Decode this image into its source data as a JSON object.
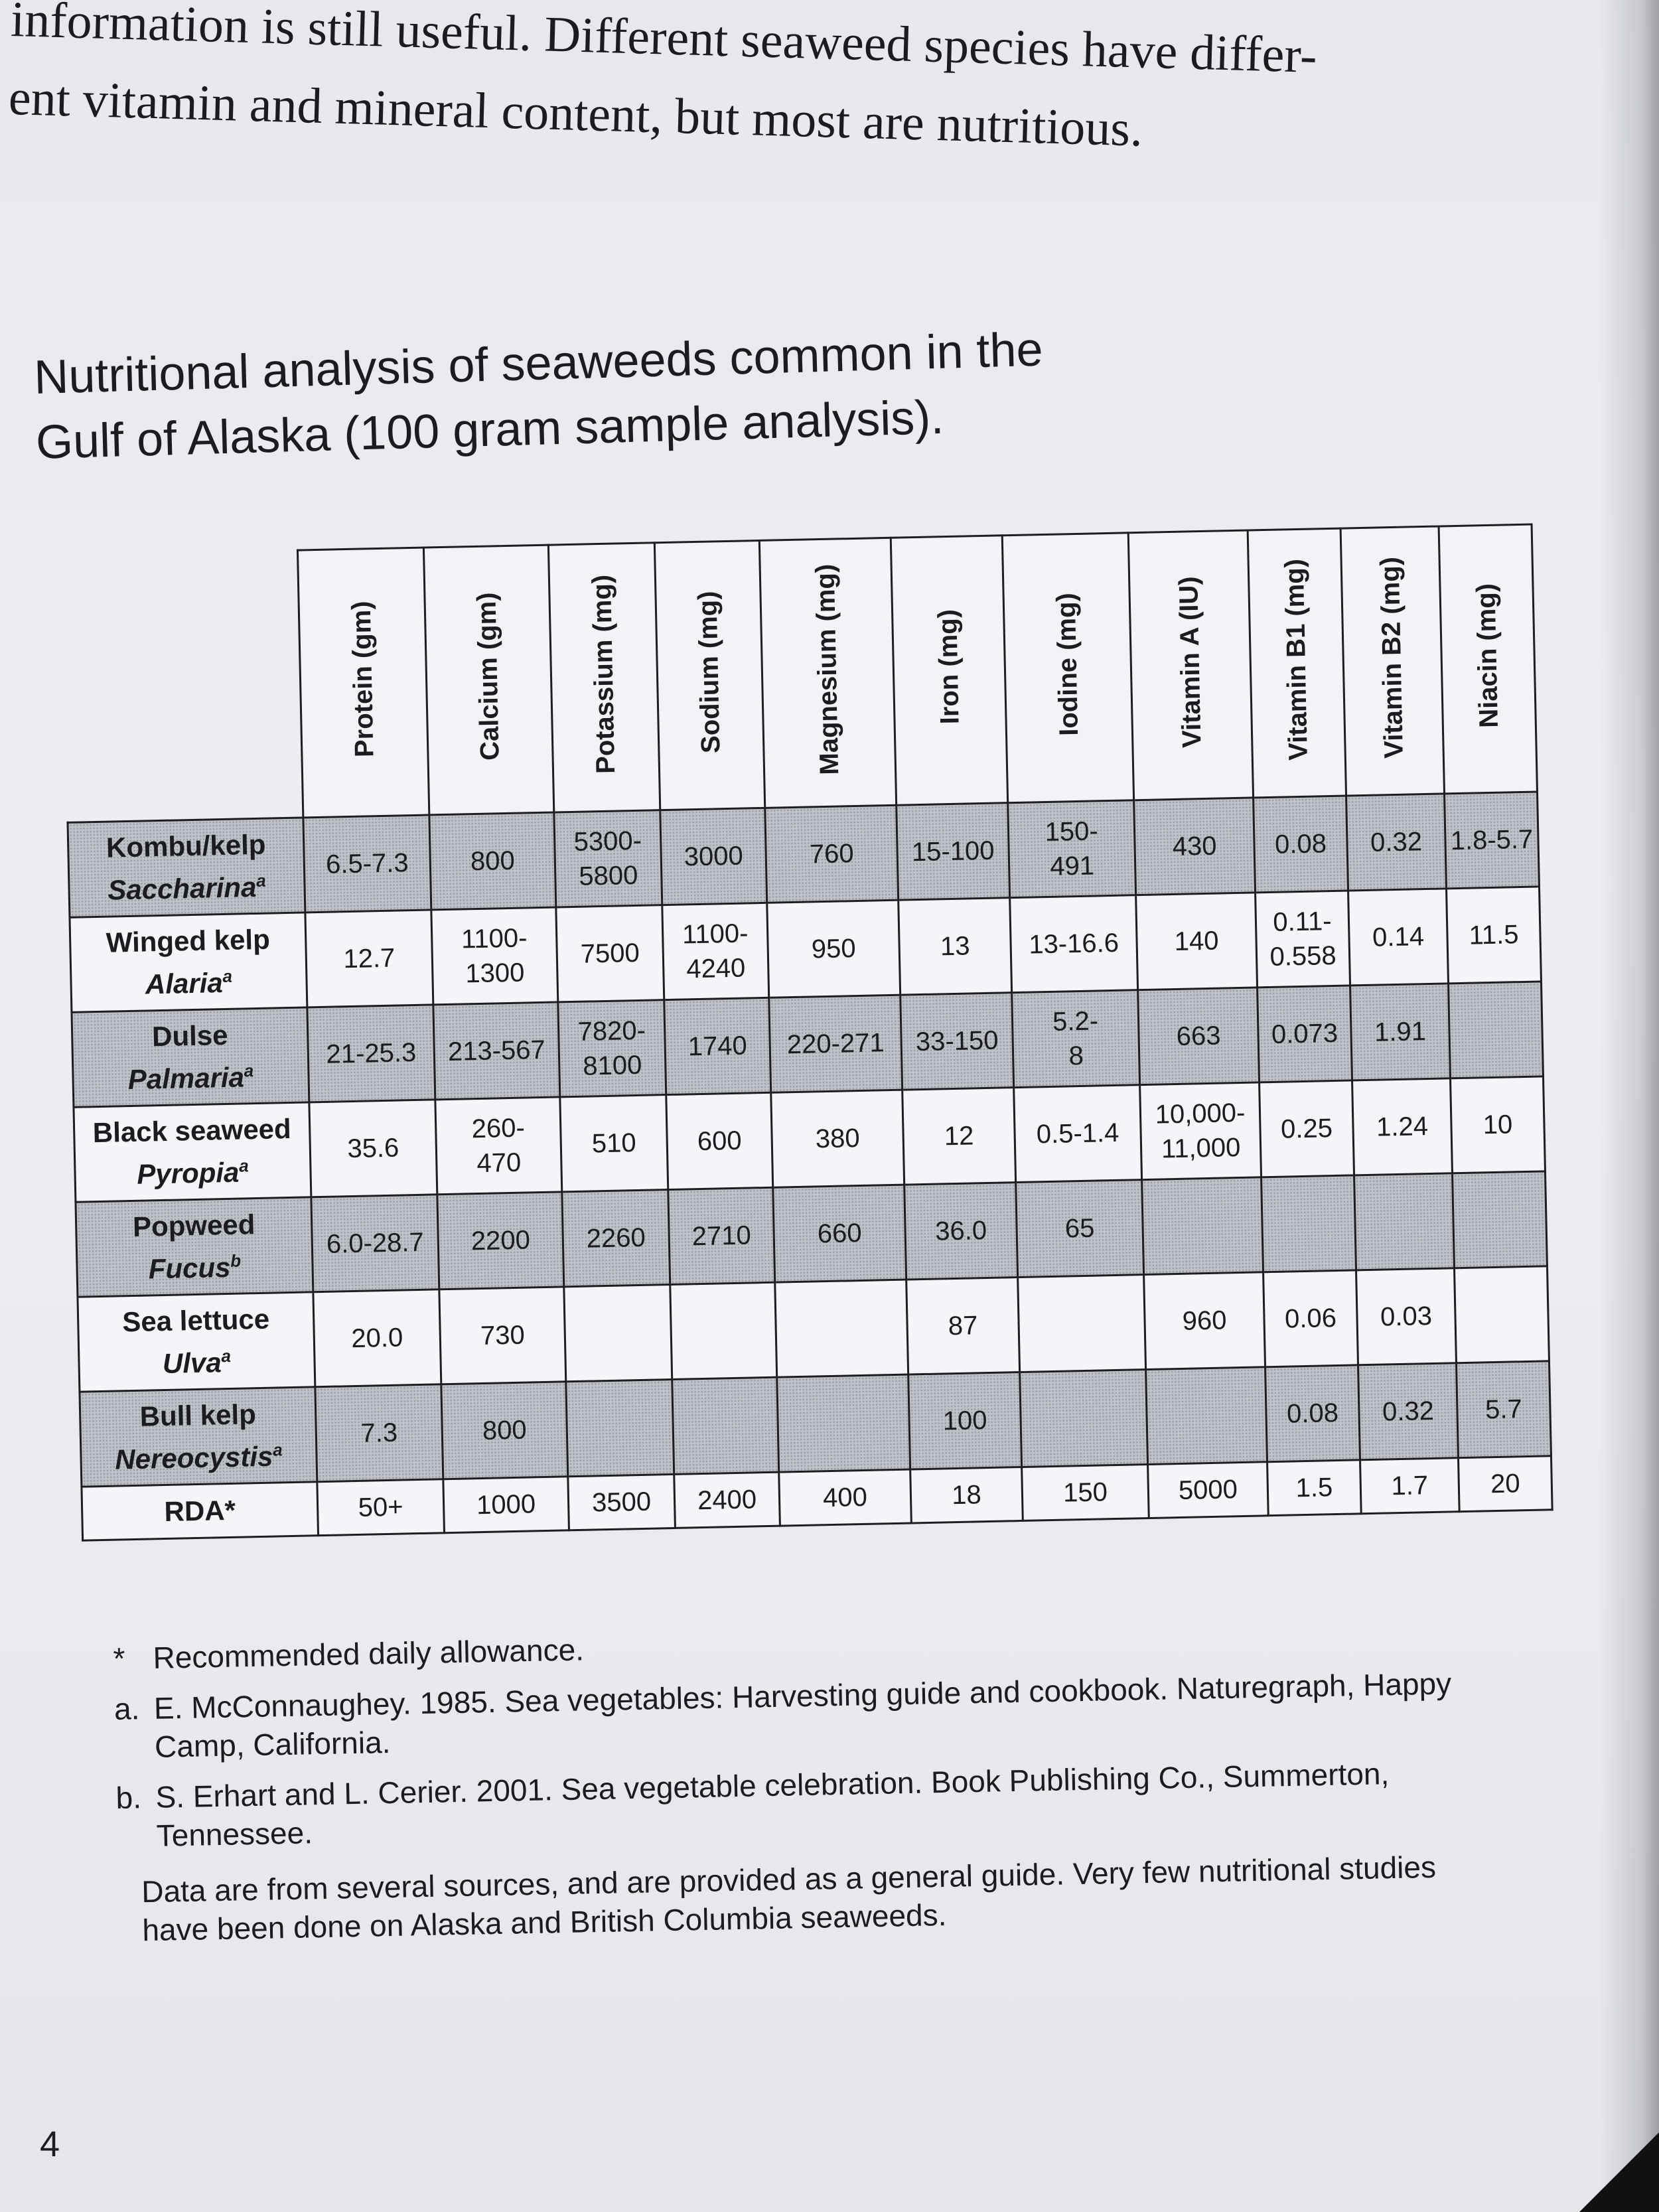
{
  "intro": {
    "line1": "information is still useful. Different seaweed species have differ-",
    "line2": "ent vitamin and mineral content, but most are nutritious."
  },
  "caption": {
    "line1": "Nutritional analysis of seaweeds common in the",
    "line2": "Gulf of Alaska (100 gram sample analysis)."
  },
  "table": {
    "columns": [
      "Protein (gm)",
      "Calcium (gm)",
      "Potassium (mg)",
      "Sodium (mg)",
      "Magnesium (mg)",
      "Iron (mg)",
      "Iodine (mg)",
      "Vitamin A (IU)",
      "Vitamin B1 (mg)",
      "Vitamin B2 (mg)",
      "Niacin (mg)"
    ],
    "rows": [
      {
        "common": "Kombu/kelp",
        "species": "Saccharina",
        "note": "a",
        "shaded": true,
        "values": [
          "6.5-7.3",
          "800",
          "5300-\n5800",
          "3000",
          "760",
          "15-100",
          "150-\n491",
          "430",
          "0.08",
          "0.32",
          "1.8-5.7"
        ]
      },
      {
        "common": "Winged kelp",
        "species": "Alaria",
        "note": "a",
        "shaded": false,
        "values": [
          "12.7",
          "1100-\n1300",
          "7500",
          "1100-\n4240",
          "950",
          "13",
          "13-16.6",
          "140",
          "0.11-\n0.558",
          "0.14",
          "11.5"
        ]
      },
      {
        "common": "Dulse",
        "species": "Palmaria",
        "note": "a",
        "shaded": true,
        "values": [
          "21-25.3",
          "213-567",
          "7820-\n8100",
          "1740",
          "220-271",
          "33-150",
          "5.2-\n8",
          "663",
          "0.073",
          "1.91",
          ""
        ]
      },
      {
        "common": "Black seaweed",
        "species": "Pyropia",
        "note": "a",
        "shaded": false,
        "values": [
          "35.6",
          "260-\n470",
          "510",
          "600",
          "380",
          "12",
          "0.5-1.4",
          "10,000-\n11,000",
          "0.25",
          "1.24",
          "10"
        ]
      },
      {
        "common": "Popweed",
        "species": "Fucus",
        "note": "b",
        "shaded": true,
        "values": [
          "6.0-28.7",
          "2200",
          "2260",
          "2710",
          "660",
          "36.0",
          "65",
          "",
          "",
          "",
          ""
        ]
      },
      {
        "common": "Sea lettuce",
        "species": "Ulva",
        "note": "a",
        "shaded": false,
        "values": [
          "20.0",
          "730",
          "",
          "",
          "",
          "87",
          "",
          "960",
          "0.06",
          "0.03",
          ""
        ]
      },
      {
        "common": "Bull kelp",
        "species": "Nereocystis",
        "note": "a",
        "shaded": true,
        "values": [
          "7.3",
          "800",
          "",
          "",
          "",
          "100",
          "",
          "",
          "0.08",
          "0.32",
          "5.7"
        ]
      }
    ],
    "rda": {
      "label": "RDA*",
      "values": [
        "50+",
        "1000",
        "3500",
        "2400",
        "400",
        "18",
        "150",
        "5000",
        "1.5",
        "1.7",
        "20"
      ]
    }
  },
  "footnotes": {
    "star_mark": "*",
    "star_text": "Recommended daily allowance.",
    "a_mark": "a.",
    "a_text": "E. McConnaughey. 1985. Sea vegetables: Harvesting guide and cookbook. Naturegraph, Happy Camp, California.",
    "b_mark": "b.",
    "b_text": "S. Erhart and L. Cerier. 2001. Sea vegetable celebration. Book Publishing Co., Summerton, Tennessee.",
    "data_note": "Data are from several sources, and are provided as a general guide. Very few nutritional studies have been done on Alaska and British Columbia seaweeds."
  },
  "page_number": "4"
}
